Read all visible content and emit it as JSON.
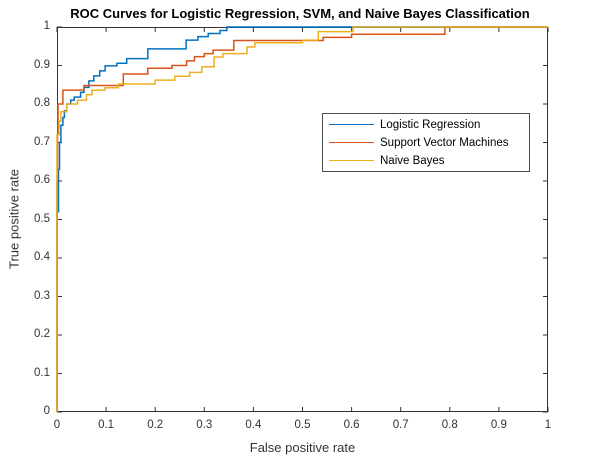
{
  "figure": {
    "title": "ROC Curves for Logistic Regression, SVM, and Naive Bayes Classification"
  },
  "chart_data": {
    "type": "line",
    "subtype": "roc-step-curves",
    "title": "ROC Curves for Logistic Regression, SVM, and Naive Bayes Classification",
    "xlabel": "False positive rate",
    "ylabel": "True positive rate",
    "xlim": [
      0,
      1
    ],
    "ylim": [
      0,
      1
    ],
    "grid": false,
    "axis_color": "#333333",
    "x_ticks": [
      "0",
      "0.1",
      "0.2",
      "0.3",
      "0.4",
      "0.5",
      "0.6",
      "0.7",
      "0.8",
      "0.9",
      "1"
    ],
    "y_ticks": [
      "0",
      "0.1",
      "0.2",
      "0.3",
      "0.4",
      "0.5",
      "0.6",
      "0.7",
      "0.8",
      "0.9",
      "1"
    ],
    "legend": {
      "position": "upper-right-inside",
      "entries": [
        "Logistic Regression",
        "Support Vector Machines",
        "Naive Bayes"
      ]
    },
    "series": [
      {
        "name": "Logistic Regression",
        "color": "#0072BD",
        "points": [
          [
            0,
            0
          ],
          [
            0,
            0.52
          ],
          [
            0.003,
            0.52
          ],
          [
            0.003,
            0.63
          ],
          [
            0.005,
            0.63
          ],
          [
            0.005,
            0.7
          ],
          [
            0.008,
            0.7
          ],
          [
            0.008,
            0.745
          ],
          [
            0.012,
            0.745
          ],
          [
            0.012,
            0.765
          ],
          [
            0.015,
            0.765
          ],
          [
            0.015,
            0.782
          ],
          [
            0.02,
            0.782
          ],
          [
            0.02,
            0.8
          ],
          [
            0.028,
            0.8
          ],
          [
            0.028,
            0.81
          ],
          [
            0.035,
            0.81
          ],
          [
            0.035,
            0.818
          ],
          [
            0.048,
            0.818
          ],
          [
            0.048,
            0.83
          ],
          [
            0.055,
            0.83
          ],
          [
            0.055,
            0.843
          ],
          [
            0.065,
            0.843
          ],
          [
            0.065,
            0.86
          ],
          [
            0.075,
            0.86
          ],
          [
            0.075,
            0.873
          ],
          [
            0.087,
            0.873
          ],
          [
            0.087,
            0.886
          ],
          [
            0.098,
            0.886
          ],
          [
            0.098,
            0.899
          ],
          [
            0.122,
            0.899
          ],
          [
            0.122,
            0.906
          ],
          [
            0.142,
            0.906
          ],
          [
            0.142,
            0.918
          ],
          [
            0.185,
            0.918
          ],
          [
            0.185,
            0.943
          ],
          [
            0.263,
            0.943
          ],
          [
            0.263,
            0.966
          ],
          [
            0.287,
            0.966
          ],
          [
            0.287,
            0.975
          ],
          [
            0.308,
            0.975
          ],
          [
            0.308,
            0.983
          ],
          [
            0.332,
            0.983
          ],
          [
            0.332,
            0.991
          ],
          [
            0.346,
            0.991
          ],
          [
            0.346,
            1
          ],
          [
            1,
            1
          ]
        ]
      },
      {
        "name": "Support Vector Machines",
        "color": "#D95319",
        "points": [
          [
            0,
            0
          ],
          [
            0,
            0.6
          ],
          [
            0.001,
            0.6
          ],
          [
            0.001,
            0.72
          ],
          [
            0.002,
            0.72
          ],
          [
            0.002,
            0.8
          ],
          [
            0.012,
            0.8
          ],
          [
            0.012,
            0.836
          ],
          [
            0.055,
            0.836
          ],
          [
            0.055,
            0.848
          ],
          [
            0.135,
            0.848
          ],
          [
            0.135,
            0.878
          ],
          [
            0.185,
            0.878
          ],
          [
            0.185,
            0.893
          ],
          [
            0.234,
            0.893
          ],
          [
            0.234,
            0.9
          ],
          [
            0.264,
            0.9
          ],
          [
            0.264,
            0.912
          ],
          [
            0.28,
            0.912
          ],
          [
            0.28,
            0.923
          ],
          [
            0.3,
            0.923
          ],
          [
            0.3,
            0.931
          ],
          [
            0.318,
            0.931
          ],
          [
            0.318,
            0.94
          ],
          [
            0.36,
            0.94
          ],
          [
            0.36,
            0.965
          ],
          [
            0.542,
            0.965
          ],
          [
            0.542,
            0.973
          ],
          [
            0.6,
            0.973
          ],
          [
            0.6,
            0.981
          ],
          [
            0.79,
            0.981
          ],
          [
            0.79,
            1
          ],
          [
            1,
            1
          ]
        ]
      },
      {
        "name": "Naive Bayes",
        "color": "#EDB120",
        "points": [
          [
            0,
            0
          ],
          [
            0,
            0.72
          ],
          [
            0.004,
            0.72
          ],
          [
            0.004,
            0.755
          ],
          [
            0.008,
            0.755
          ],
          [
            0.008,
            0.78
          ],
          [
            0.02,
            0.78
          ],
          [
            0.02,
            0.8
          ],
          [
            0.042,
            0.8
          ],
          [
            0.042,
            0.81
          ],
          [
            0.06,
            0.81
          ],
          [
            0.06,
            0.824
          ],
          [
            0.071,
            0.824
          ],
          [
            0.071,
            0.836
          ],
          [
            0.098,
            0.836
          ],
          [
            0.098,
            0.842
          ],
          [
            0.125,
            0.842
          ],
          [
            0.125,
            0.852
          ],
          [
            0.2,
            0.852
          ],
          [
            0.2,
            0.862
          ],
          [
            0.24,
            0.862
          ],
          [
            0.24,
            0.872
          ],
          [
            0.27,
            0.872
          ],
          [
            0.27,
            0.882
          ],
          [
            0.295,
            0.882
          ],
          [
            0.295,
            0.897
          ],
          [
            0.32,
            0.897
          ],
          [
            0.32,
            0.922
          ],
          [
            0.338,
            0.922
          ],
          [
            0.338,
            0.931
          ],
          [
            0.387,
            0.931
          ],
          [
            0.387,
            0.948
          ],
          [
            0.403,
            0.948
          ],
          [
            0.403,
            0.959
          ],
          [
            0.5,
            0.959
          ],
          [
            0.5,
            0.966
          ],
          [
            0.532,
            0.966
          ],
          [
            0.532,
            0.988
          ],
          [
            0.603,
            0.988
          ],
          [
            0.603,
            1
          ],
          [
            1,
            1
          ]
        ]
      }
    ]
  }
}
